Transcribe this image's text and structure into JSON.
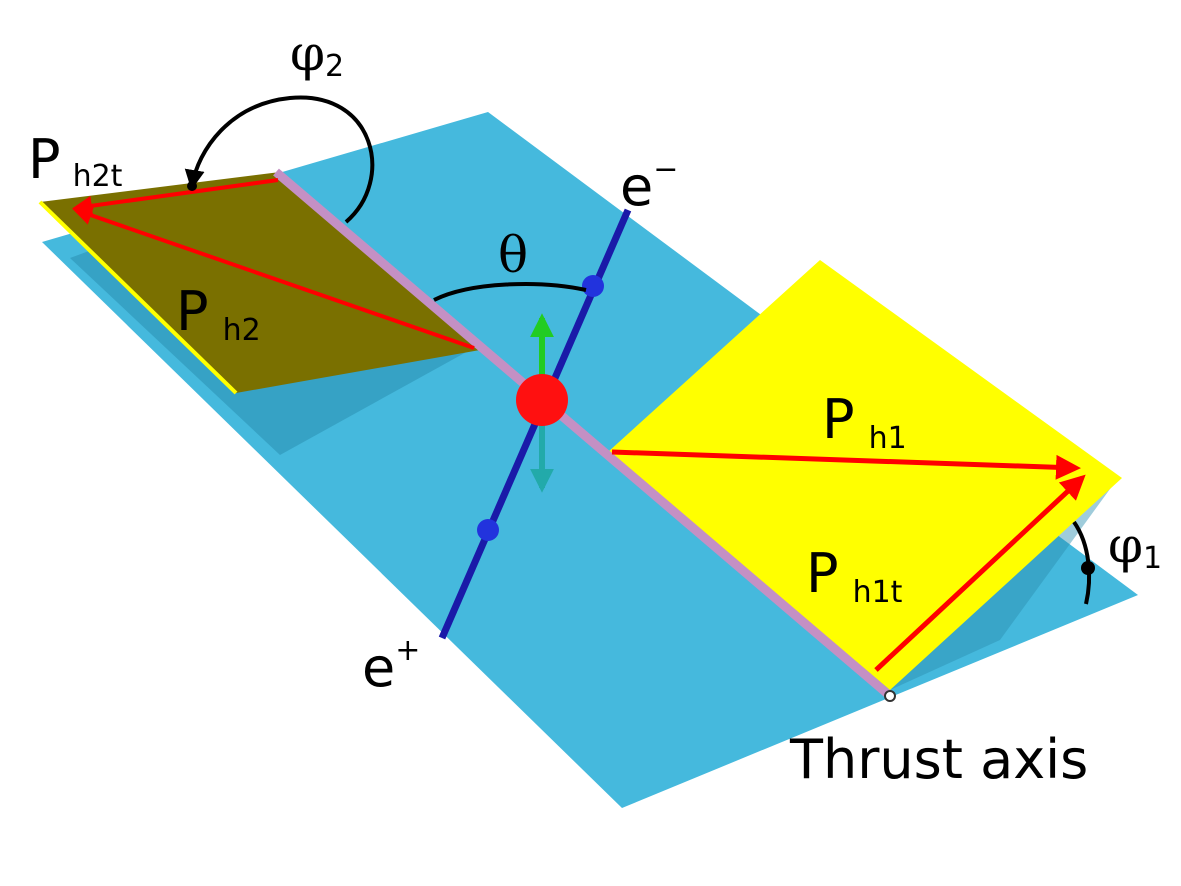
{
  "labels": {
    "phi2": "φ",
    "phi2_sub": "2",
    "phi1": "φ",
    "phi1_sub": "1",
    "theta": "θ",
    "e_minus": "e",
    "e_minus_sup": "−",
    "e_plus": "e",
    "e_plus_sup": "+",
    "ph2t_main": "P",
    "ph2t_sub": "h2t",
    "ph2_main": "P",
    "ph2_sub": "h2",
    "ph1_main": "P",
    "ph1_sub": "h1",
    "ph1t_main": "P",
    "ph1t_sub": "h1t",
    "thrust_axis": "Thrust axis"
  },
  "colors": {
    "ground_plane": "#45b9dd",
    "ground_shadow": "#2a8fb0",
    "hemisphere1_plane": "#ffff00",
    "hemisphere2_plane": "#7a7000",
    "thrust_axis": "#c490c4",
    "momentum_vector": "#ff0000",
    "beam_axis": "#1a1aa8",
    "vertex": "#ff1010",
    "up_arrow": "#22cc22",
    "down_arrow": "#22aaaa",
    "angle_arc": "#000000"
  }
}
